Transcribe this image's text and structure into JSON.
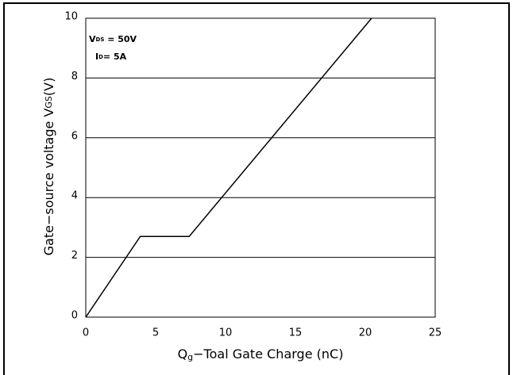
{
  "chart_data": {
    "type": "line",
    "xlabel": {
      "main": "Q",
      "sub": "g",
      "rest": "−Toal Gate Charge (nC)"
    },
    "ylabel": {
      "main": "Gate−source voltage V",
      "sub": "GS",
      "rest": "(V)"
    },
    "annotations": [
      {
        "main": "V",
        "sub": "DS",
        "rest": " = 50V"
      },
      {
        "main": "I",
        "sub": "D",
        "rest": "= 5A"
      }
    ],
    "series": [
      {
        "color": "#000000",
        "x": [
          0,
          3.9,
          7.4,
          20.45
        ],
        "values": [
          0,
          2.7,
          2.7,
          10
        ]
      }
    ],
    "xlim": [
      0,
      25
    ],
    "xticks": [
      0,
      5,
      10,
      15,
      20,
      25
    ],
    "ylim": [
      0,
      10
    ],
    "yticks": [
      0,
      2,
      4,
      6,
      8,
      10
    ],
    "grid": true
  }
}
